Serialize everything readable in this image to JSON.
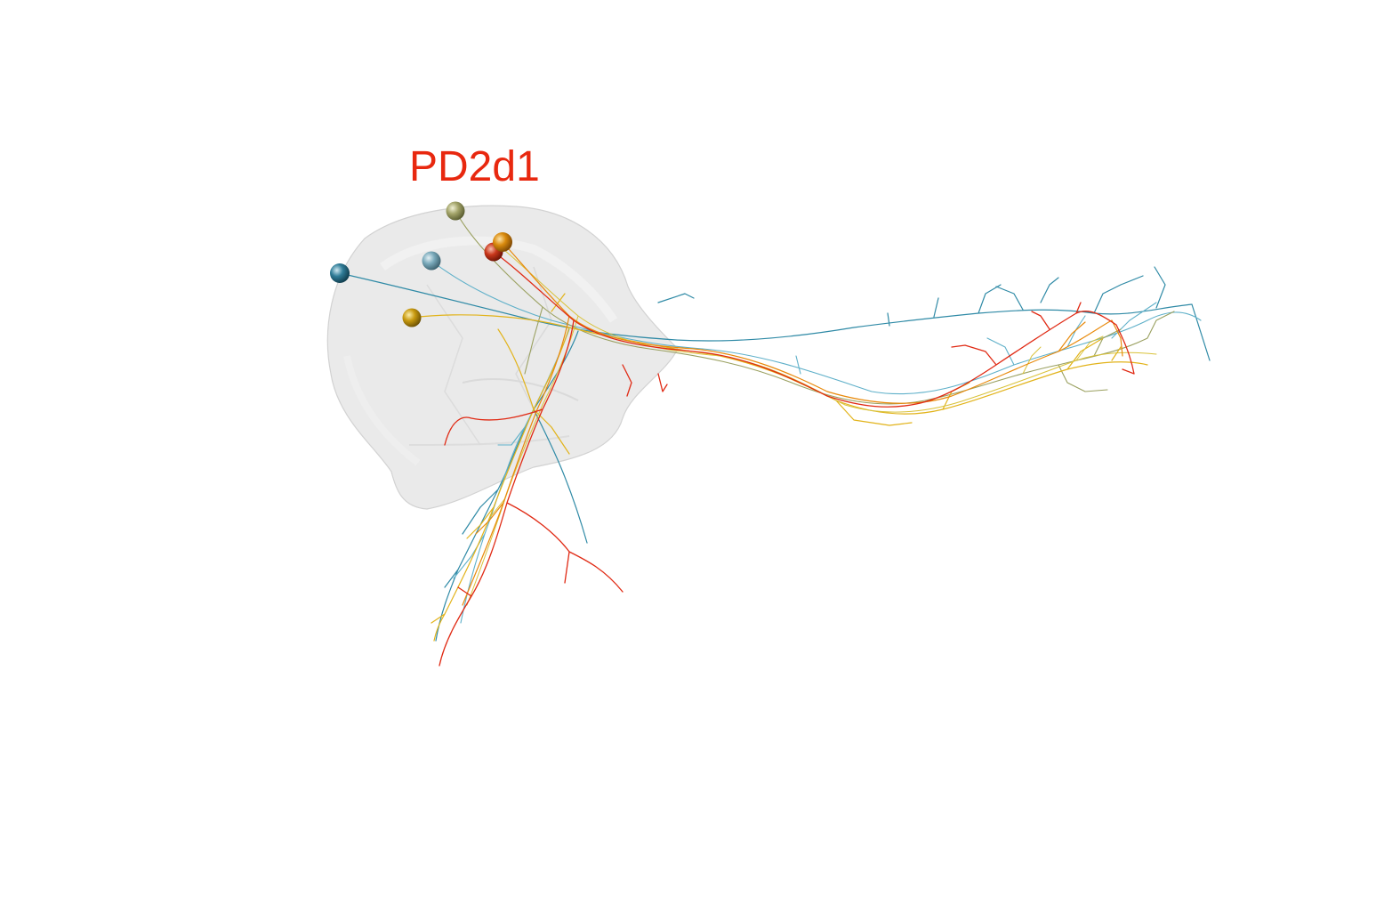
{
  "label": {
    "text": "PD2d1",
    "color": "#e8280f"
  },
  "colors": {
    "background": "#ffffff",
    "neuropil_fill": "#e6e6e6",
    "neuron_red": "#e02a14",
    "neuron_orange": "#e88a0c",
    "neuron_gold": "#e2b31a",
    "neuron_yellow": "#d9c23a",
    "neuron_olive": "#9aa060",
    "neuron_teal": "#2f8aa6",
    "neuron_lightblue": "#5fb0c9",
    "soma_dark_teal": "#1e6f8c",
    "soma_grey_blue": "#7aaabb",
    "soma_olive": "#a8a870"
  },
  "icons": {
    "neuropil": "neuropil-mesh-icon",
    "soma": "soma-sphere-icon"
  }
}
